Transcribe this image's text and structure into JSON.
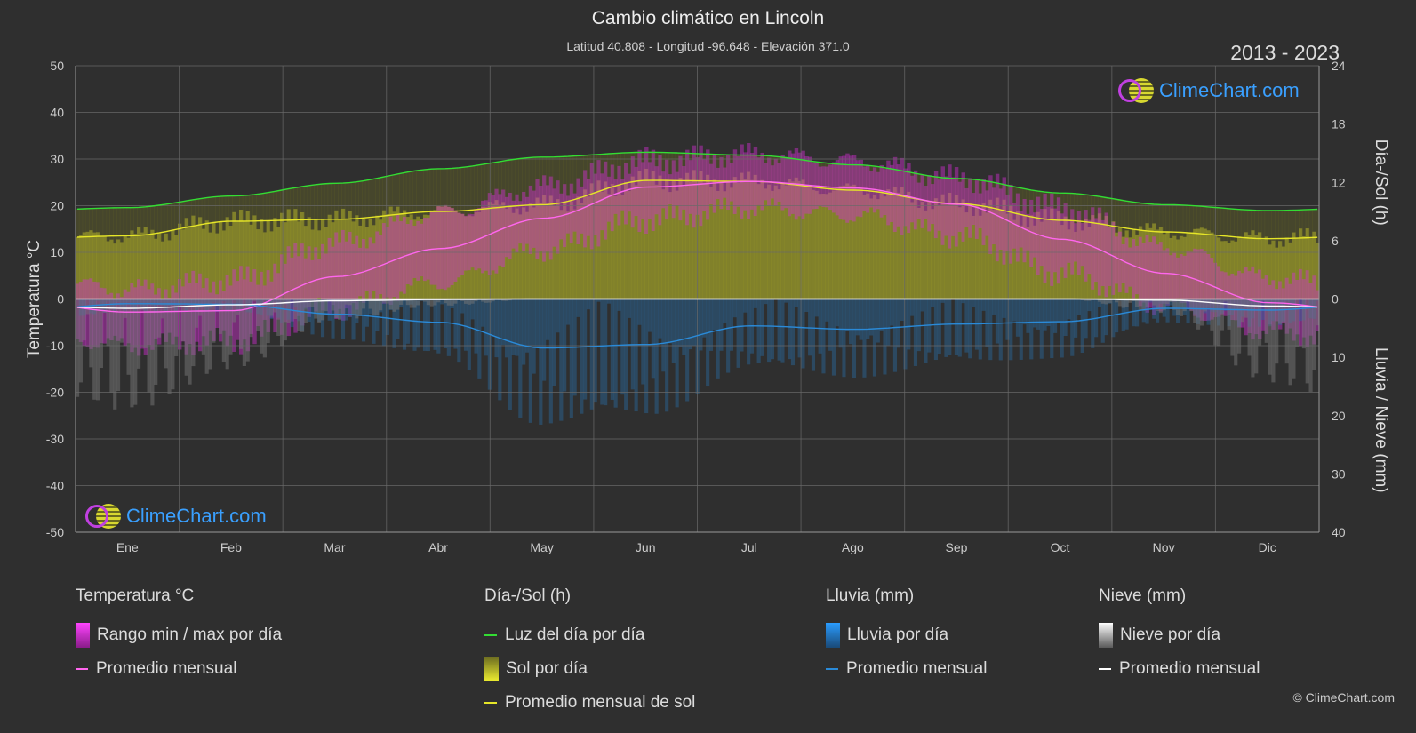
{
  "title": "Cambio climático en Lincoln",
  "subtitle": "Latitud 40.808 - Longitud -96.648 - Elevación 371.0",
  "years": "2013 - 2023",
  "logo_text": "ClimeChart.com",
  "copyright": "© ClimeChart.com",
  "colors": {
    "background": "#2f2f2f",
    "daylight": "#33dd33",
    "sunshine_avg": "#e6e628",
    "sunshine_fill": "#9a9a2a",
    "temp_range": "#d22fd2",
    "temp_avg": "#ff66ee",
    "rain": "#2a8ad8",
    "snow": "#ffffff",
    "logo_text": "#3aa0ff"
  },
  "chart_data": {
    "type": "line",
    "months": [
      "Ene",
      "Feb",
      "Mar",
      "Abr",
      "May",
      "Jun",
      "Jul",
      "Ago",
      "Sep",
      "Oct",
      "Nov",
      "Dic"
    ],
    "left_axis": {
      "label": "Temperatura °C",
      "ticks": [
        "50",
        "40",
        "30",
        "20",
        "10",
        "0",
        "-10",
        "-20",
        "-30",
        "-40",
        "-50"
      ],
      "range": [
        -50,
        50
      ]
    },
    "right_axis_top": {
      "label": "Día-/Sol (h)",
      "ticks": [
        "24",
        "18",
        "12",
        "6",
        "0"
      ],
      "range": [
        0,
        24
      ]
    },
    "right_axis_bottom": {
      "label": "Lluvia / Nieve (mm)",
      "ticks": [
        "0",
        "10",
        "20",
        "30",
        "40"
      ],
      "range": [
        0,
        40
      ]
    },
    "series": {
      "daylight_hours": [
        9.4,
        10.6,
        11.9,
        13.4,
        14.6,
        15.1,
        14.8,
        13.8,
        12.4,
        10.9,
        9.7,
        9.1
      ],
      "sunshine_monthly_avg_hours": [
        6.5,
        8.0,
        8.2,
        9.0,
        9.7,
        12.2,
        12.1,
        11.2,
        9.8,
        8.1,
        6.9,
        6.2
      ],
      "temp_monthly_avg_c": [
        -2.8,
        -2.5,
        4.8,
        10.8,
        17.3,
        24.0,
        25.2,
        23.8,
        20.3,
        12.8,
        5.5,
        -0.8
      ],
      "temp_daily_max_c": [
        2.0,
        4.0,
        12.0,
        18.5,
        24.0,
        29.5,
        31.0,
        29.5,
        26.0,
        19.5,
        11.0,
        4.5
      ],
      "temp_daily_min_c": [
        -10.0,
        -9.0,
        -2.0,
        3.5,
        10.5,
        17.0,
        19.5,
        18.0,
        13.5,
        5.5,
        -1.5,
        -7.0
      ],
      "rain_monthly_avg_mm": [
        0.8,
        0.9,
        2.6,
        4.0,
        8.4,
        7.8,
        4.6,
        5.2,
        4.3,
        3.9,
        1.6,
        1.9
      ],
      "snow_monthly_avg_mm": [
        1.6,
        1.0,
        0.3,
        0.1,
        0.0,
        0.0,
        0.0,
        0.0,
        0.0,
        0.0,
        0.2,
        1.2
      ]
    },
    "grid": true
  },
  "legend": {
    "temp": {
      "header": "Temperatura °C",
      "range": "Rango min / max por día",
      "avg": "Promedio mensual"
    },
    "sun": {
      "header": "Día-/Sol (h)",
      "daylight": "Luz del día por día",
      "sunshine": "Sol por día",
      "avg": "Promedio mensual de sol"
    },
    "rain": {
      "header": "Lluvia (mm)",
      "daily": "Lluvia por día",
      "avg": "Promedio mensual"
    },
    "snow": {
      "header": "Nieve (mm)",
      "daily": "Nieve por día",
      "avg": "Promedio mensual"
    }
  }
}
